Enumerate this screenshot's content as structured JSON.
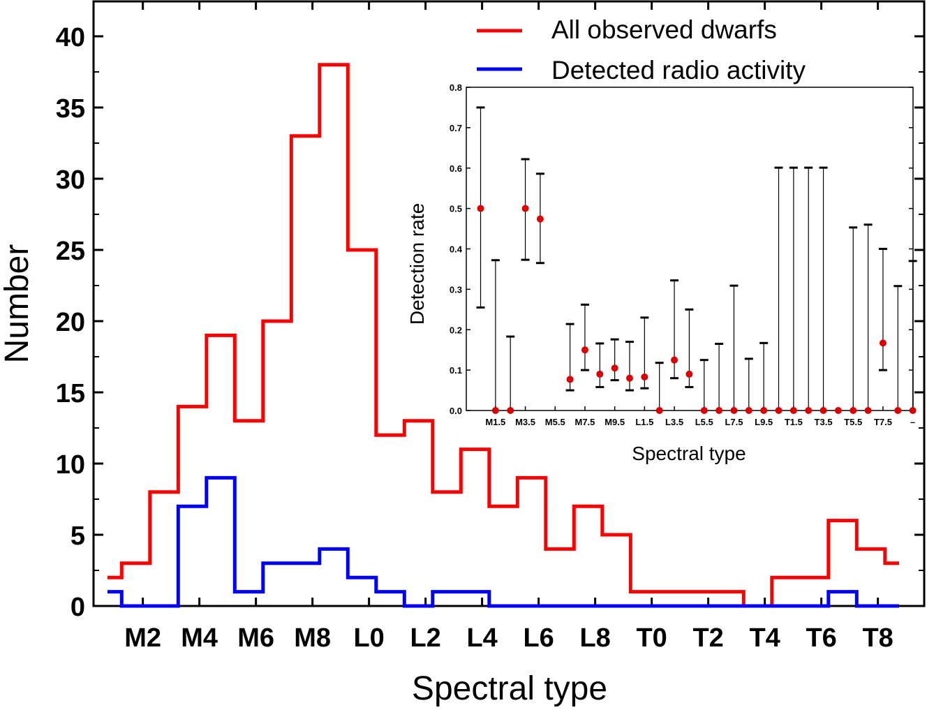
{
  "chart_data": [
    {
      "type": "step",
      "title": "",
      "xlabel": "Spectral type",
      "ylabel": "Number",
      "ylim": [
        0,
        42
      ],
      "yticks": [
        0,
        5,
        10,
        15,
        20,
        25,
        30,
        35,
        40
      ],
      "xtick_labels": [
        "M2",
        "M4",
        "M6",
        "M8",
        "L0",
        "L2",
        "L4",
        "L6",
        "L8",
        "T0",
        "T2",
        "T4",
        "T6",
        "T8"
      ],
      "bins": [
        "M1",
        "M1.5",
        "M2",
        "M2.5",
        "M3",
        "M3.5",
        "M4",
        "M4.5",
        "M5",
        "M5.5",
        "M6",
        "M6.5",
        "M7",
        "M7.5",
        "M8",
        "M8.5",
        "M9",
        "M9.5",
        "L0",
        "L0.5",
        "L1",
        "L1.5",
        "L2",
        "L2.5",
        "L3",
        "L3.5",
        "L4",
        "L4.5",
        "L5",
        "L5.5",
        "L6",
        "L6.5",
        "L7",
        "L7.5",
        "L8",
        "L8.5",
        "L9",
        "L9.5",
        "T0",
        "T0.5",
        "T1",
        "T1.5",
        "T2",
        "T2.5",
        "T3",
        "T3.5",
        "T4",
        "T4.5",
        "T5",
        "T5.5",
        "T6",
        "T6.5",
        "T7",
        "T7.5",
        "T8",
        "T8.5"
      ],
      "series": [
        {
          "name": "All observed dwarfs",
          "color": "#ff0000",
          "values": [
            2,
            3,
            3,
            8,
            8,
            14,
            14,
            19,
            19,
            13,
            13,
            20,
            20,
            33,
            33,
            38,
            38,
            25,
            25,
            12,
            12,
            13,
            13,
            8,
            8,
            11,
            11,
            7,
            7,
            9,
            9,
            4,
            4,
            7,
            7,
            5,
            5,
            1,
            1,
            1,
            1,
            1,
            1,
            1,
            1,
            0,
            0,
            2,
            2,
            2,
            2,
            6,
            6,
            4,
            4,
            3
          ]
        },
        {
          "name": "Detected radio activity",
          "color": "#0000ff",
          "values": [
            1,
            0,
            0,
            0,
            0,
            7,
            7,
            9,
            9,
            1,
            1,
            3,
            3,
            3,
            3,
            4,
            4,
            2,
            2,
            1,
            1,
            0,
            0,
            1,
            1,
            1,
            1,
            0,
            0,
            0,
            0,
            0,
            0,
            0,
            0,
            0,
            0,
            0,
            0,
            0,
            0,
            0,
            0,
            0,
            0,
            0,
            0,
            0,
            0,
            0,
            0,
            1,
            1,
            0,
            0,
            0
          ]
        }
      ],
      "legend": "top-right"
    },
    {
      "type": "scatter",
      "title": "",
      "xlabel": "Spectral type",
      "ylabel": "Detection rate",
      "ylim": [
        0,
        0.8
      ],
      "yticks": [
        "0.0",
        "0.1",
        "0.2",
        "0.3",
        "0.4",
        "0.5",
        "0.6",
        "0.7",
        "0.8"
      ],
      "xtick_labels": [
        "M1.5",
        "M3.5",
        "M5.5",
        "M7.5",
        "M9.5",
        "L1.5",
        "L3.5",
        "L5.5",
        "L7.5",
        "L9.5",
        "T1.5",
        "T3.5",
        "T5.5",
        "T7.5",
        "–"
      ],
      "color": "#e00000",
      "points": [
        {
          "y": 0.5,
          "lo": 0.255,
          "hi": 0.75
        },
        {
          "y": 0.0,
          "lo": 0.0,
          "hi": 0.372
        },
        {
          "y": 0.0,
          "lo": 0.0,
          "hi": 0.183
        },
        {
          "y": 0.5,
          "lo": 0.373,
          "hi": 0.622
        },
        {
          "y": 0.474,
          "lo": 0.365,
          "hi": 0.586
        },
        null,
        {
          "y": 0.077,
          "lo": 0.05,
          "hi": 0.214
        },
        {
          "y": 0.15,
          "lo": 0.1,
          "hi": 0.262
        },
        {
          "y": 0.09,
          "lo": 0.058,
          "hi": 0.166
        },
        {
          "y": 0.105,
          "lo": 0.075,
          "hi": 0.176
        },
        {
          "y": 0.08,
          "lo": 0.05,
          "hi": 0.17
        },
        {
          "y": 0.083,
          "lo": 0.055,
          "hi": 0.23
        },
        {
          "y": 0.0,
          "lo": 0.0,
          "hi": 0.118
        },
        {
          "y": 0.125,
          "lo": 0.08,
          "hi": 0.322
        },
        {
          "y": 0.09,
          "lo": 0.058,
          "hi": 0.25
        },
        {
          "y": 0.0,
          "lo": 0.0,
          "hi": 0.125
        },
        {
          "y": 0.0,
          "lo": 0.0,
          "hi": 0.165
        },
        {
          "y": 0.0,
          "lo": 0.0,
          "hi": 0.309
        },
        {
          "y": 0.0,
          "lo": 0.0,
          "hi": 0.128
        },
        {
          "y": 0.0,
          "lo": 0.0,
          "hi": 0.167
        },
        {
          "y": 0.0,
          "lo": 0.0,
          "hi": 0.601
        },
        {
          "y": 0.0,
          "lo": 0.0,
          "hi": 0.601
        },
        {
          "y": 0.0,
          "lo": 0.0,
          "hi": 0.601
        },
        {
          "y": 0.0,
          "lo": 0.0,
          "hi": 0.601
        },
        {
          "y": 0.0,
          "lo": 0.0,
          "hi": null
        },
        {
          "y": 0.0,
          "lo": 0.0,
          "hi": 0.453
        },
        {
          "y": 0.0,
          "lo": 0.0,
          "hi": 0.46
        },
        {
          "y": 0.167,
          "lo": 0.1,
          "hi": 0.4
        },
        {
          "y": 0.0,
          "lo": 0.0,
          "hi": 0.308
        },
        {
          "y": 0.0,
          "lo": 0.0,
          "hi": 0.37
        }
      ]
    }
  ]
}
